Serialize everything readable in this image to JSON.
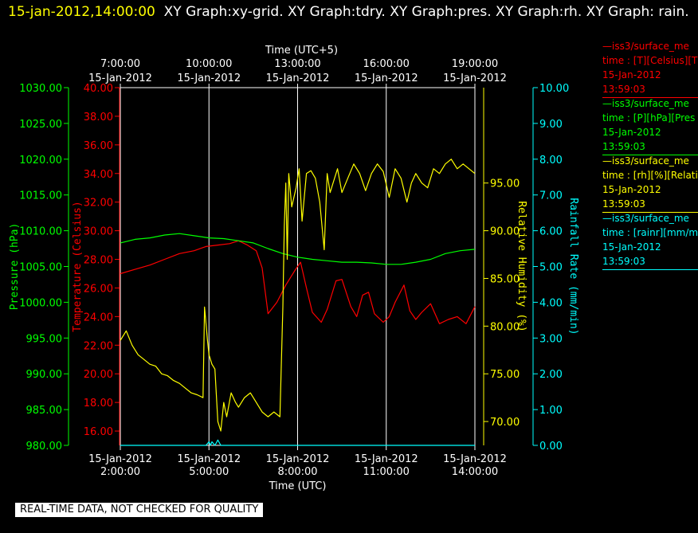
{
  "header": {
    "date": "15-jan-2012,14:00:00",
    "title": "XY Graph:xy-grid.  XY Graph:tdry.  XY Graph:pres.  XY Graph:rh.  XY Graph: rain."
  },
  "colors": {
    "temperature": "#ff0000",
    "pressure": "#00ff00",
    "humidity": "#ffff00",
    "rain": "#00ffff",
    "grid": "#ffffff",
    "background": "#000000"
  },
  "notice": "REAL-TIME DATA, NOT CHECKED FOR QUALITY",
  "legend": [
    {
      "name": "—iss3/surface_me",
      "units": "time : [T][Celsius][T",
      "date": "15-Jan-2012",
      "time": "13:59:03",
      "color": "#ff0000"
    },
    {
      "name": "—iss3/surface_me",
      "units": "time : [P][hPa][Pres",
      "date": "15-Jan-2012",
      "time": "13:59:03",
      "color": "#00ff00"
    },
    {
      "name": "—iss3/surface_me",
      "units": "time : [rh][%][Relati",
      "date": "15-Jan-2012",
      "time": "13:59:03",
      "color": "#ffff00"
    },
    {
      "name": "—iss3/surface_me",
      "units": "time : [rainr][mm/mi",
      "date": "15-Jan-2012",
      "time": "13:59:03",
      "color": "#00ffff"
    }
  ],
  "chart_data": {
    "type": "line",
    "top_axis": {
      "label": "Time (UTC+5)",
      "ticks": [
        {
          "time": "7:00:00",
          "date": "15-Jan-2012",
          "hour": 2
        },
        {
          "time": "10:00:00",
          "date": "15-Jan-2012",
          "hour": 5
        },
        {
          "time": "13:00:00",
          "date": "15-Jan-2012",
          "hour": 8
        },
        {
          "time": "16:00:00",
          "date": "15-Jan-2012",
          "hour": 11
        },
        {
          "time": "19:00:00",
          "date": "15-Jan-2012",
          "hour": 14
        }
      ]
    },
    "bottom_axis": {
      "label": "Time (UTC)",
      "range_hours": [
        2,
        14
      ],
      "ticks": [
        {
          "date": "15-Jan-2012",
          "time": "2:00:00",
          "hour": 2
        },
        {
          "date": "15-Jan-2012",
          "time": "5:00:00",
          "hour": 5
        },
        {
          "date": "15-Jan-2012",
          "time": "8:00:00",
          "hour": 8
        },
        {
          "date": "15-Jan-2012",
          "time": "11:00:00",
          "hour": 11
        },
        {
          "date": "15-Jan-2012",
          "time": "14:00:00",
          "hour": 14
        }
      ]
    },
    "grid": "vertical",
    "axes": {
      "pressure": {
        "label": "Pressure (hPa)",
        "range": [
          980,
          1030
        ],
        "ticks": [
          "980.00",
          "985.00",
          "990.00",
          "995.00",
          "1000.00",
          "1005.00",
          "1010.00",
          "1015.00",
          "1020.00",
          "1025.00",
          "1030.00"
        ]
      },
      "temperature": {
        "label": "Temperature (Celsius)",
        "range": [
          15,
          40
        ],
        "ticks": [
          "16.00",
          "18.00",
          "20.00",
          "22.00",
          "24.00",
          "26.00",
          "28.00",
          "30.00",
          "32.00",
          "34.00",
          "36.00",
          "38.00",
          "40.00"
        ]
      },
      "humidity": {
        "label": "Relative Humidity (%)",
        "range": [
          67.5,
          105
        ],
        "ticks": [
          "70.00",
          "75.00",
          "80.00",
          "85.00",
          "90.00",
          "95.00"
        ]
      },
      "rain": {
        "label": "Rainfall Rate (mm/min)",
        "range": [
          0,
          10
        ],
        "ticks": [
          "0.00",
          "1.00",
          "2.00",
          "3.00",
          "4.00",
          "5.00",
          "6.00",
          "7.00",
          "8.00",
          "9.00",
          "10.00"
        ]
      }
    },
    "series": [
      {
        "key": "temperature",
        "x": [
          2,
          2.5,
          3,
          3.5,
          4,
          4.5,
          4.9,
          5.3,
          5.7,
          6,
          6.3,
          6.6,
          6.8,
          7,
          7.3,
          7.6,
          7.9,
          8.1,
          8.3,
          8.5,
          8.8,
          9,
          9.3,
          9.5,
          9.8,
          10,
          10.2,
          10.4,
          10.6,
          10.9,
          11.1,
          11.3,
          11.6,
          11.8,
          12,
          12.2,
          12.5,
          12.8,
          13.1,
          13.4,
          13.7,
          14
        ],
        "y": [
          27.0,
          27.3,
          27.6,
          28.0,
          28.4,
          28.6,
          28.9,
          29.0,
          29.1,
          29.3,
          29.0,
          28.6,
          27.4,
          24.2,
          25.0,
          26.2,
          27.2,
          27.8,
          26.0,
          24.3,
          23.6,
          24.5,
          26.5,
          26.6,
          24.7,
          24.0,
          25.5,
          25.7,
          24.2,
          23.6,
          24.0,
          25.0,
          26.2,
          24.4,
          23.8,
          24.3,
          24.9,
          23.5,
          23.8,
          24.0,
          23.5,
          24.7
        ]
      },
      {
        "key": "pressure",
        "x": [
          2,
          2.5,
          3,
          3.5,
          4,
          4.5,
          5,
          5.5,
          6,
          6.5,
          7,
          7.5,
          8,
          8.5,
          9,
          9.5,
          10,
          10.5,
          11,
          11.5,
          12,
          12.5,
          13,
          13.5,
          14
        ],
        "y": [
          1008.3,
          1008.8,
          1009.0,
          1009.4,
          1009.6,
          1009.3,
          1009.0,
          1008.9,
          1008.6,
          1008.3,
          1007.5,
          1006.8,
          1006.3,
          1006.0,
          1005.8,
          1005.6,
          1005.6,
          1005.5,
          1005.3,
          1005.3,
          1005.6,
          1006.0,
          1006.8,
          1007.2,
          1007.4
        ]
      },
      {
        "key": "humidity",
        "x": [
          2,
          2.2,
          2.4,
          2.6,
          2.8,
          3,
          3.2,
          3.4,
          3.6,
          3.8,
          4,
          4.2,
          4.4,
          4.6,
          4.8,
          4.85,
          4.95,
          5,
          5.1,
          5.2,
          5.3,
          5.4,
          5.5,
          5.6,
          5.75,
          5.9,
          6,
          6.2,
          6.4,
          6.6,
          6.8,
          7,
          7.2,
          7.4,
          7.5,
          7.55,
          7.6,
          7.65,
          7.7,
          7.8,
          7.95,
          8.05,
          8.15,
          8.3,
          8.45,
          8.6,
          8.75,
          8.9,
          9,
          9.1,
          9.2,
          9.35,
          9.5,
          9.7,
          9.9,
          10.1,
          10.3,
          10.5,
          10.7,
          10.9,
          11.1,
          11.3,
          11.5,
          11.7,
          11.85,
          12,
          12.2,
          12.4,
          12.6,
          12.8,
          13,
          13.2,
          13.4,
          13.6,
          13.8,
          14
        ],
        "y": [
          78.5,
          79.5,
          78.0,
          77.0,
          76.5,
          76.0,
          75.8,
          75.0,
          74.8,
          74.3,
          74.0,
          73.5,
          73.0,
          72.8,
          72.5,
          82.0,
          78.5,
          77.0,
          76.0,
          75.5,
          70.0,
          69.0,
          72.0,
          70.5,
          73.0,
          72.0,
          71.5,
          72.5,
          73.0,
          72.0,
          71.0,
          70.5,
          71.0,
          70.5,
          82.0,
          90.5,
          95.0,
          87.0,
          96.0,
          92.5,
          94.5,
          96.5,
          91.0,
          96.0,
          96.3,
          95.5,
          93.0,
          88.0,
          96.0,
          94.0,
          95.0,
          96.5,
          94.0,
          95.5,
          97.0,
          96.0,
          94.2,
          96.0,
          97.0,
          96.2,
          93.5,
          96.5,
          95.5,
          93.0,
          95.0,
          96.0,
          95.0,
          94.5,
          96.5,
          96.0,
          97.0,
          97.5,
          96.5,
          97.0,
          96.5,
          96.0
        ]
      },
      {
        "key": "rain",
        "x": [
          2,
          4.9,
          5.0,
          5.05,
          5.1,
          5.2,
          5.3,
          5.4,
          5.5,
          14
        ],
        "y": [
          0.0,
          0.0,
          0.1,
          0.0,
          0.1,
          0.0,
          0.15,
          0.0,
          0.0,
          0.0
        ]
      }
    ]
  }
}
